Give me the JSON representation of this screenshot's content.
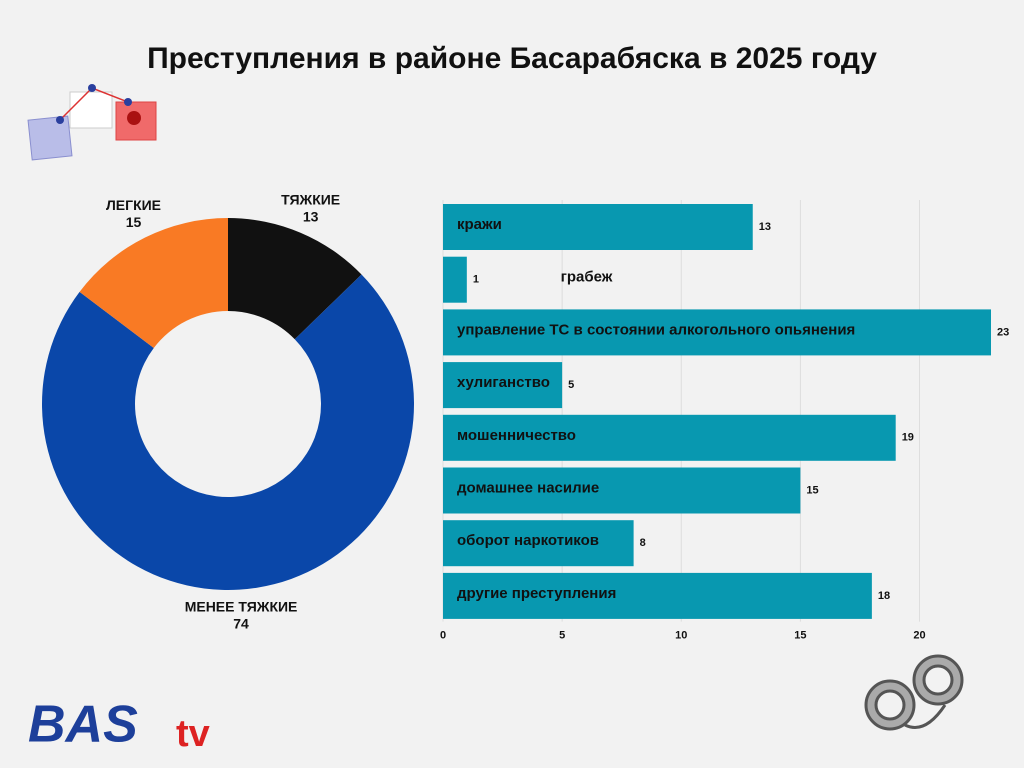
{
  "title": "Преступления в районе Басарабяска в 2025 году",
  "logo": [
    "BAS",
    "tv"
  ],
  "chart_data": [
    {
      "type": "donut",
      "categories": [
        "ТЯЖКИЕ",
        "МЕНЕЕ ТЯЖКИЕ",
        "ЛЕГКИЕ"
      ],
      "values": [
        13,
        74,
        15
      ],
      "colors": [
        "#111111",
        "#0a47a9",
        "#f97a24"
      ]
    },
    {
      "type": "hbar",
      "categories": [
        "кражи",
        "грабеж",
        "управление ТС в состоянии алкогольного опьянения",
        "хулиганство",
        "мошенничество",
        "домашнее насилие",
        "оборот наркотиков",
        "другие преступления"
      ],
      "values": [
        13,
        1,
        23,
        5,
        19,
        15,
        8,
        18
      ],
      "color": "#0898b0",
      "xlim": [
        0,
        23
      ],
      "xticks": [
        0,
        5,
        10,
        15,
        20
      ],
      "grid": true
    }
  ]
}
